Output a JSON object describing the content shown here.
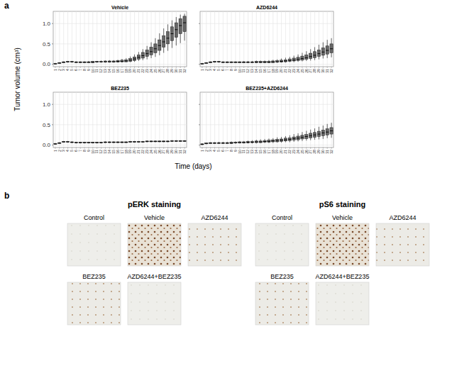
{
  "panel_labels": [
    "a",
    "b"
  ],
  "figure": {
    "y_label": "Tumor volume (cm³)",
    "x_label": "Time (days)"
  },
  "chart_data": [
    {
      "type": "box",
      "title": "Vehicle",
      "grid": true,
      "categories": [
        1,
        2,
        3,
        4,
        5,
        6,
        7,
        8,
        9,
        10,
        11,
        12,
        13,
        14,
        15,
        16,
        17,
        18,
        19,
        20,
        21,
        22,
        23,
        24,
        25,
        26,
        27,
        28,
        29,
        30,
        31,
        32
      ],
      "ylim": [
        -0.06,
        1.3
      ],
      "yticks": [
        {
          "value": 0,
          "label": "0.0"
        },
        {
          "value": 0.5,
          "label": "0.5"
        },
        {
          "value": 1,
          "label": "1.0"
        }
      ],
      "min": [
        0.0,
        0.01,
        0.03,
        0.04,
        0.04,
        0.03,
        0.03,
        0.03,
        0.03,
        0.03,
        0.04,
        0.04,
        0.04,
        0.04,
        0.04,
        0.04,
        0.04,
        0.05,
        0.05,
        0.06,
        0.08,
        0.1,
        0.12,
        0.15,
        0.18,
        0.22,
        0.28,
        0.33,
        0.4,
        0.46,
        0.52,
        0.58
      ],
      "q1": [
        0.01,
        0.02,
        0.04,
        0.05,
        0.05,
        0.04,
        0.04,
        0.04,
        0.04,
        0.04,
        0.05,
        0.05,
        0.05,
        0.05,
        0.05,
        0.05,
        0.06,
        0.06,
        0.07,
        0.09,
        0.12,
        0.15,
        0.19,
        0.23,
        0.28,
        0.34,
        0.42,
        0.5,
        0.58,
        0.66,
        0.75,
        0.8
      ],
      "median": [
        0.01,
        0.03,
        0.05,
        0.06,
        0.06,
        0.05,
        0.05,
        0.05,
        0.05,
        0.05,
        0.06,
        0.06,
        0.06,
        0.06,
        0.06,
        0.07,
        0.07,
        0.08,
        0.1,
        0.13,
        0.17,
        0.21,
        0.26,
        0.31,
        0.38,
        0.46,
        0.55,
        0.64,
        0.75,
        0.85,
        0.95,
        1.02
      ],
      "q3": [
        0.02,
        0.04,
        0.06,
        0.07,
        0.07,
        0.06,
        0.06,
        0.06,
        0.06,
        0.07,
        0.07,
        0.07,
        0.08,
        0.08,
        0.08,
        0.09,
        0.1,
        0.11,
        0.14,
        0.18,
        0.23,
        0.29,
        0.35,
        0.42,
        0.5,
        0.6,
        0.7,
        0.8,
        0.92,
        1.02,
        1.12,
        1.18
      ],
      "max": [
        0.03,
        0.05,
        0.07,
        0.08,
        0.08,
        0.07,
        0.07,
        0.07,
        0.08,
        0.08,
        0.08,
        0.09,
        0.09,
        0.1,
        0.1,
        0.11,
        0.13,
        0.15,
        0.19,
        0.24,
        0.3,
        0.37,
        0.45,
        0.54,
        0.64,
        0.76,
        0.88,
        0.98,
        1.08,
        1.16,
        1.22,
        1.24
      ]
    },
    {
      "type": "box",
      "title": "AZD6244",
      "grid": true,
      "tick_labels": "x",
      "categories": [
        1,
        2,
        3,
        4,
        5,
        6,
        7,
        8,
        9,
        10,
        11,
        12,
        13,
        14,
        15,
        16,
        17,
        18,
        19,
        20,
        21,
        22,
        23,
        24,
        25,
        26,
        27,
        28,
        29,
        30,
        31,
        32
      ],
      "ylim": [
        -0.06,
        1.3
      ],
      "yticks": [
        {
          "value": 0,
          "label": "0.0"
        },
        {
          "value": 0.5,
          "label": "0.5"
        },
        {
          "value": 1,
          "label": "1.0"
        }
      ],
      "min": [
        0.0,
        0.01,
        0.03,
        0.04,
        0.04,
        0.03,
        0.03,
        0.03,
        0.03,
        0.03,
        0.03,
        0.03,
        0.03,
        0.03,
        0.03,
        0.03,
        0.03,
        0.03,
        0.03,
        0.04,
        0.04,
        0.05,
        0.05,
        0.06,
        0.07,
        0.08,
        0.09,
        0.1,
        0.12,
        0.14,
        0.15,
        0.17
      ],
      "q1": [
        0.01,
        0.02,
        0.04,
        0.05,
        0.05,
        0.04,
        0.04,
        0.04,
        0.04,
        0.04,
        0.04,
        0.04,
        0.04,
        0.04,
        0.04,
        0.04,
        0.04,
        0.04,
        0.05,
        0.05,
        0.06,
        0.07,
        0.08,
        0.09,
        0.1,
        0.12,
        0.14,
        0.16,
        0.19,
        0.22,
        0.25,
        0.28
      ],
      "median": [
        0.01,
        0.03,
        0.05,
        0.06,
        0.06,
        0.05,
        0.05,
        0.05,
        0.05,
        0.05,
        0.05,
        0.05,
        0.05,
        0.05,
        0.05,
        0.05,
        0.05,
        0.06,
        0.06,
        0.07,
        0.08,
        0.09,
        0.1,
        0.12,
        0.14,
        0.16,
        0.19,
        0.22,
        0.26,
        0.3,
        0.34,
        0.38
      ],
      "q3": [
        0.02,
        0.04,
        0.06,
        0.07,
        0.07,
        0.06,
        0.06,
        0.06,
        0.06,
        0.06,
        0.06,
        0.06,
        0.06,
        0.07,
        0.07,
        0.07,
        0.07,
        0.08,
        0.09,
        0.1,
        0.11,
        0.13,
        0.15,
        0.17,
        0.2,
        0.23,
        0.27,
        0.31,
        0.35,
        0.4,
        0.45,
        0.5
      ],
      "max": [
        0.03,
        0.05,
        0.07,
        0.08,
        0.08,
        0.07,
        0.07,
        0.07,
        0.07,
        0.07,
        0.08,
        0.08,
        0.08,
        0.09,
        0.09,
        0.09,
        0.1,
        0.11,
        0.12,
        0.14,
        0.16,
        0.18,
        0.21,
        0.24,
        0.28,
        0.32,
        0.37,
        0.42,
        0.48,
        0.54,
        0.6,
        0.64
      ]
    },
    {
      "type": "box",
      "title": "BEZ235",
      "grid": true,
      "categories": [
        1,
        2,
        3,
        4,
        5,
        6,
        7,
        8,
        9,
        10,
        11,
        12,
        13,
        14,
        15,
        16,
        17,
        18,
        19,
        20,
        21,
        22,
        23,
        24,
        25,
        26,
        27,
        28,
        29,
        30,
        31,
        32
      ],
      "ylim": [
        -0.06,
        1.3
      ],
      "yticks": [
        {
          "value": 0,
          "label": "0.0"
        },
        {
          "value": 0.5,
          "label": "0.5"
        },
        {
          "value": 1,
          "label": "1.0"
        }
      ],
      "min": [
        0.01,
        0.03,
        0.06,
        0.06,
        0.05,
        0.04,
        0.04,
        0.04,
        0.04,
        0.04,
        0.04,
        0.04,
        0.05,
        0.05,
        0.05,
        0.05,
        0.05,
        0.05,
        0.06,
        0.06,
        0.06,
        0.06,
        0.07,
        0.07,
        0.07,
        0.07,
        0.07,
        0.07,
        0.08,
        0.08,
        0.08,
        0.08
      ],
      "q1": [
        0.02,
        0.04,
        0.07,
        0.07,
        0.06,
        0.05,
        0.05,
        0.05,
        0.05,
        0.05,
        0.05,
        0.05,
        0.06,
        0.06,
        0.06,
        0.06,
        0.06,
        0.06,
        0.07,
        0.07,
        0.07,
        0.07,
        0.08,
        0.08,
        0.08,
        0.08,
        0.08,
        0.08,
        0.09,
        0.09,
        0.09,
        0.09
      ],
      "median": [
        0.03,
        0.05,
        0.08,
        0.08,
        0.07,
        0.06,
        0.06,
        0.06,
        0.06,
        0.06,
        0.06,
        0.06,
        0.07,
        0.07,
        0.07,
        0.07,
        0.07,
        0.07,
        0.08,
        0.08,
        0.08,
        0.08,
        0.09,
        0.09,
        0.09,
        0.09,
        0.09,
        0.09,
        0.1,
        0.1,
        0.1,
        0.1
      ],
      "q3": [
        0.04,
        0.06,
        0.09,
        0.09,
        0.08,
        0.07,
        0.07,
        0.07,
        0.07,
        0.07,
        0.07,
        0.07,
        0.08,
        0.08,
        0.08,
        0.08,
        0.08,
        0.08,
        0.09,
        0.09,
        0.09,
        0.09,
        0.1,
        0.1,
        0.1,
        0.1,
        0.1,
        0.1,
        0.11,
        0.11,
        0.11,
        0.11
      ],
      "max": [
        0.05,
        0.07,
        0.1,
        0.1,
        0.09,
        0.08,
        0.08,
        0.08,
        0.08,
        0.08,
        0.08,
        0.08,
        0.09,
        0.09,
        0.09,
        0.09,
        0.09,
        0.09,
        0.1,
        0.1,
        0.1,
        0.1,
        0.11,
        0.11,
        0.11,
        0.11,
        0.11,
        0.11,
        0.12,
        0.12,
        0.12,
        0.12
      ]
    },
    {
      "type": "box",
      "title": "BEZ235+AZD6244",
      "grid": true,
      "tick_labels": "x",
      "categories": [
        1,
        2,
        3,
        4,
        5,
        6,
        7,
        8,
        9,
        10,
        11,
        12,
        13,
        14,
        15,
        16,
        17,
        18,
        19,
        20,
        21,
        22,
        23,
        24,
        25,
        26,
        27,
        28,
        29,
        30,
        31,
        32
      ],
      "ylim": [
        -0.06,
        1.3
      ],
      "yticks": [
        {
          "value": 0,
          "label": "0.0"
        },
        {
          "value": 0.5,
          "label": "0.5"
        },
        {
          "value": 1,
          "label": "1.0"
        }
      ],
      "min": [
        0.0,
        0.02,
        0.03,
        0.03,
        0.03,
        0.03,
        0.03,
        0.03,
        0.03,
        0.04,
        0.04,
        0.04,
        0.04,
        0.04,
        0.05,
        0.05,
        0.05,
        0.05,
        0.06,
        0.06,
        0.07,
        0.07,
        0.08,
        0.09,
        0.1,
        0.11,
        0.12,
        0.13,
        0.14,
        0.15,
        0.17,
        0.18
      ],
      "q1": [
        0.01,
        0.03,
        0.04,
        0.04,
        0.04,
        0.04,
        0.04,
        0.04,
        0.05,
        0.05,
        0.05,
        0.05,
        0.06,
        0.06,
        0.06,
        0.07,
        0.07,
        0.08,
        0.08,
        0.09,
        0.1,
        0.11,
        0.12,
        0.13,
        0.15,
        0.16,
        0.18,
        0.19,
        0.21,
        0.23,
        0.25,
        0.27
      ],
      "median": [
        0.02,
        0.04,
        0.05,
        0.05,
        0.05,
        0.05,
        0.05,
        0.05,
        0.06,
        0.06,
        0.06,
        0.07,
        0.07,
        0.08,
        0.08,
        0.09,
        0.09,
        0.1,
        0.11,
        0.12,
        0.13,
        0.14,
        0.16,
        0.17,
        0.19,
        0.21,
        0.23,
        0.25,
        0.27,
        0.3,
        0.32,
        0.35
      ],
      "q3": [
        0.03,
        0.05,
        0.06,
        0.06,
        0.06,
        0.06,
        0.06,
        0.07,
        0.07,
        0.08,
        0.08,
        0.09,
        0.09,
        0.1,
        0.1,
        0.11,
        0.12,
        0.13,
        0.14,
        0.15,
        0.17,
        0.18,
        0.2,
        0.22,
        0.24,
        0.26,
        0.29,
        0.31,
        0.34,
        0.37,
        0.4,
        0.43
      ],
      "max": [
        0.04,
        0.06,
        0.07,
        0.07,
        0.08,
        0.08,
        0.08,
        0.09,
        0.09,
        0.1,
        0.1,
        0.11,
        0.12,
        0.13,
        0.14,
        0.15,
        0.16,
        0.17,
        0.19,
        0.2,
        0.22,
        0.24,
        0.27,
        0.29,
        0.32,
        0.35,
        0.38,
        0.41,
        0.45,
        0.48,
        0.52,
        0.55
      ]
    }
  ],
  "staining": [
    {
      "title": "pERK staining",
      "labels": [
        "Control",
        "Vehicle",
        "AZD6244",
        "BEZ235",
        "AZD6244+BEZ235"
      ]
    },
    {
      "title": "pS6 staining",
      "labels": [
        "Control",
        "Vehicle",
        "AZD6244",
        "BEZ235",
        "AZD6244+BEZ235"
      ]
    }
  ]
}
